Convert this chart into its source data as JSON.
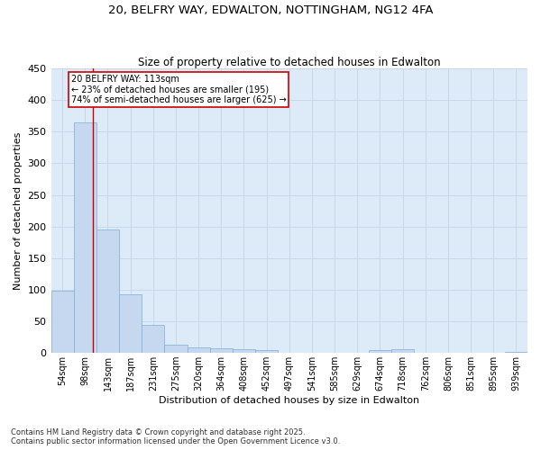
{
  "title": "20, BELFRY WAY, EDWALTON, NOTTINGHAM, NG12 4FA",
  "subtitle": "Size of property relative to detached houses in Edwalton",
  "xlabel": "Distribution of detached houses by size in Edwalton",
  "ylabel": "Number of detached properties",
  "footer": "Contains HM Land Registry data © Crown copyright and database right 2025.\nContains public sector information licensed under the Open Government Licence v3.0.",
  "categories": [
    "54sqm",
    "98sqm",
    "143sqm",
    "187sqm",
    "231sqm",
    "275sqm",
    "320sqm",
    "364sqm",
    "408sqm",
    "452sqm",
    "497sqm",
    "541sqm",
    "585sqm",
    "629sqm",
    "674sqm",
    "718sqm",
    "762sqm",
    "806sqm",
    "851sqm",
    "895sqm",
    "939sqm"
  ],
  "values": [
    98,
    365,
    195,
    93,
    45,
    13,
    9,
    8,
    6,
    5,
    0,
    0,
    0,
    0,
    5,
    6,
    0,
    0,
    0,
    0,
    2
  ],
  "bar_color": "#c5d8f0",
  "bar_edge_color": "#7ab0d8",
  "grid_color": "#c8d8e8",
  "background_color": "#ddeaf7",
  "annotation_text": "20 BELFRY WAY: 113sqm\n← 23% of detached houses are smaller (195)\n74% of semi-detached houses are larger (625) →",
  "annotation_box_color": "#ffffff",
  "annotation_box_edge": "#cc0000",
  "red_line_x": 1.33,
  "ylim": [
    0,
    450
  ],
  "yticks": [
    0,
    50,
    100,
    150,
    200,
    250,
    300,
    350,
    400,
    450
  ]
}
